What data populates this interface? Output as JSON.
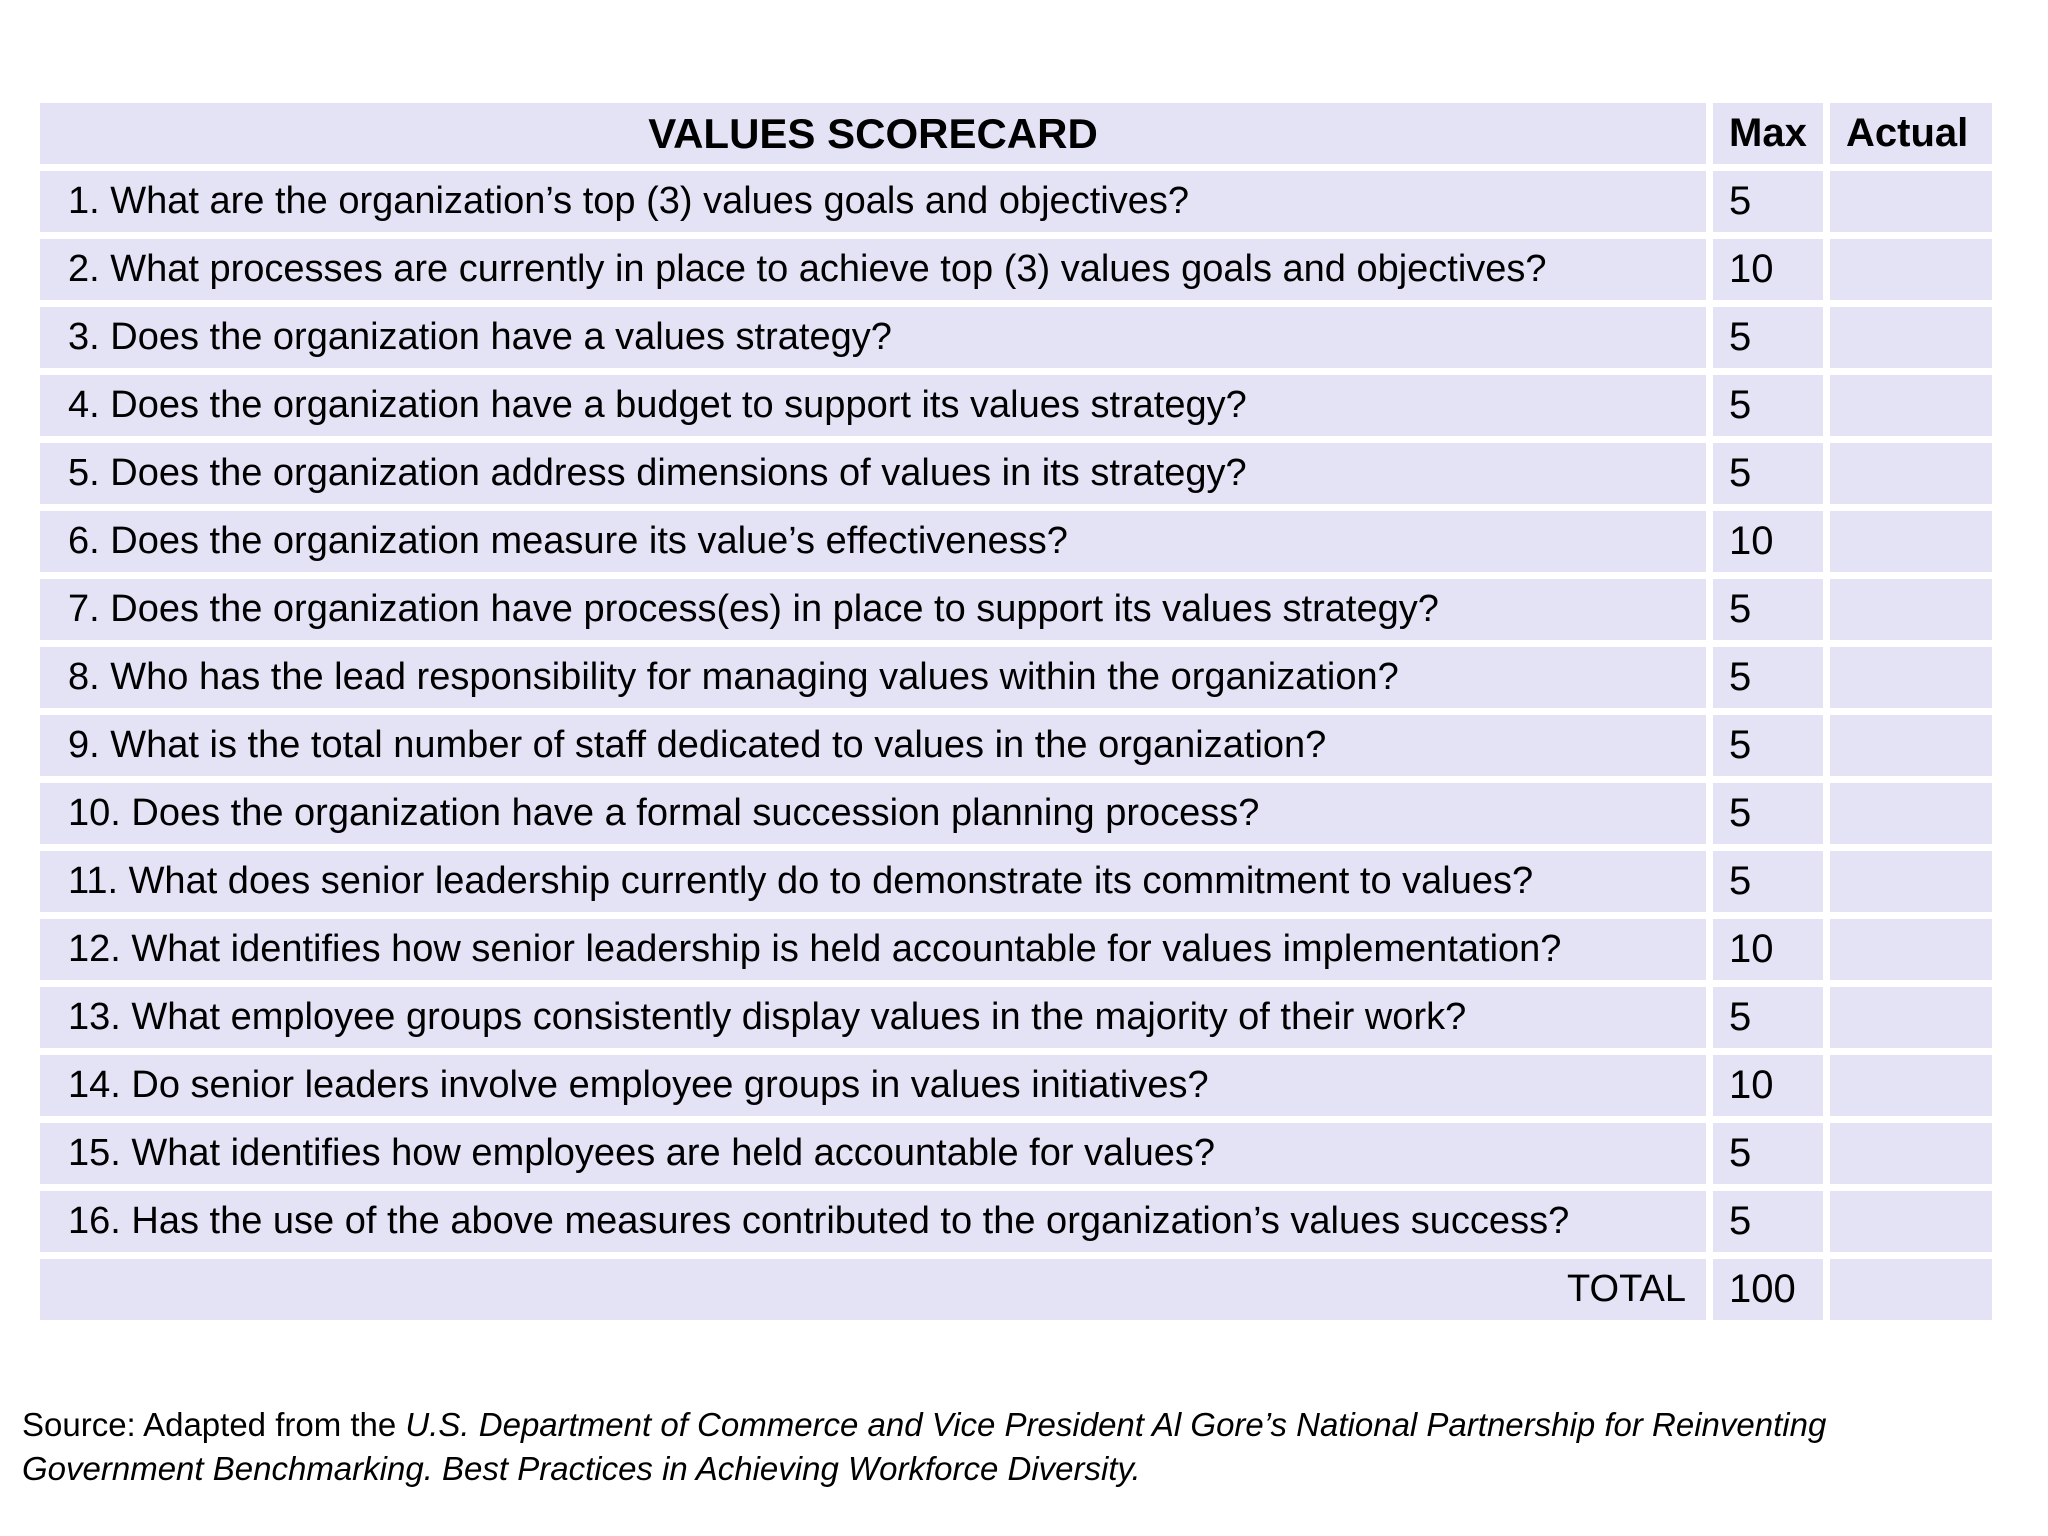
{
  "table": {
    "title": "VALUES SCORECARD",
    "columns": {
      "max": "Max",
      "actual": "Actual"
    },
    "rows": [
      {
        "question": "1. What are the organization’s top (3) values goals and objectives?",
        "max": "5",
        "actual": ""
      },
      {
        "question": "2. What processes are currently in place to achieve top (3) values goals and objectives?",
        "max": "10",
        "actual": ""
      },
      {
        "question": "3. Does the organization have a values strategy?",
        "max": "5",
        "actual": ""
      },
      {
        "question": "4. Does the organization have a budget to support its values strategy?",
        "max": "5",
        "actual": ""
      },
      {
        "question": "5. Does the organization address dimensions of values in its strategy?",
        "max": "5",
        "actual": ""
      },
      {
        "question": "6. Does the organization measure its value’s effectiveness?",
        "max": "10",
        "actual": ""
      },
      {
        "question": "7. Does the organization have process(es) in place to support its values strategy?",
        "max": "5",
        "actual": ""
      },
      {
        "question": "8. Who has the lead responsibility for managing values within the organization?",
        "max": "5",
        "actual": ""
      },
      {
        "question": "9. What is the total number of staff dedicated to values in the organization?",
        "max": "5",
        "actual": ""
      },
      {
        "question": "10. Does the organization have a formal succession planning process?",
        "max": "5",
        "actual": ""
      },
      {
        "question": "11. What does senior leadership currently do to demonstrate its commitment to values?",
        "max": "5",
        "actual": ""
      },
      {
        "question": "12. What identifies how senior leadership is held accountable for values implementation?",
        "max": "10",
        "actual": ""
      },
      {
        "question": "13. What employee groups consistently display values in the majority of their work?",
        "max": "5",
        "actual": ""
      },
      {
        "question": "14. Do senior leaders involve employee groups in values initiatives?",
        "max": "10",
        "actual": ""
      },
      {
        "question": "15. What identifies how employees are held accountable for values?",
        "max": "5",
        "actual": ""
      },
      {
        "question": "16. Has the use of the above measures contributed to the organization’s values success?",
        "max": "5",
        "actual": ""
      }
    ],
    "total": {
      "label": "TOTAL",
      "max": "100",
      "actual": ""
    }
  },
  "source": {
    "prefix": "Source: Adapted from the ",
    "citation": "U.S. Department of Commerce and Vice President Al Gore’s National Partnership for Reinventing Government Benchmarking. Best Practices in Achieving Workforce Diversity."
  },
  "colors": {
    "cell_background": "#E4E3F5",
    "page_background": "#FFFFFF",
    "text": "#000000"
  }
}
